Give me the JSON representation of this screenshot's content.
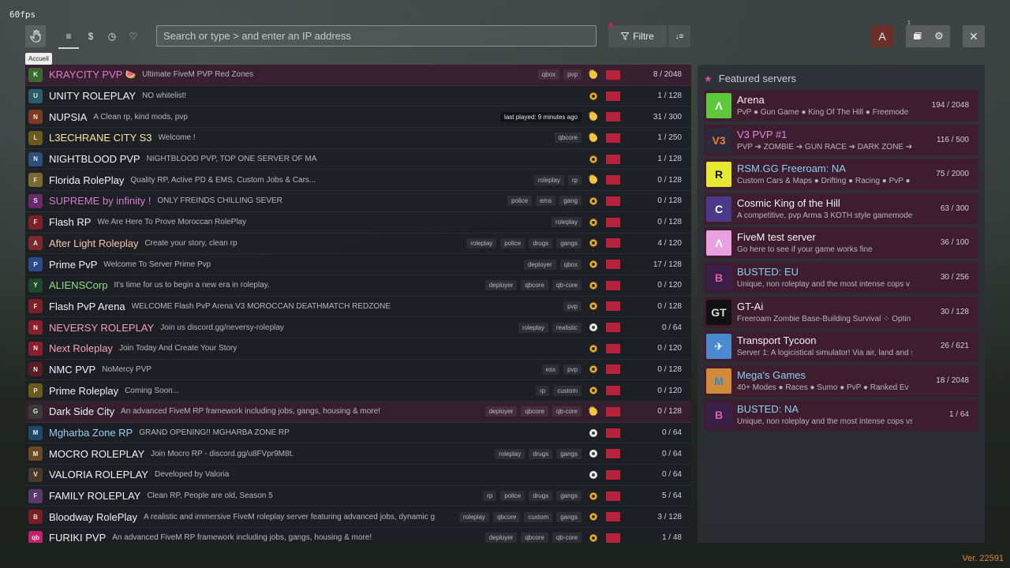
{
  "fps": "60fps",
  "tooltip": "Accueil",
  "toolbar": {
    "home_icon": "hand-icon",
    "tabs": [
      {
        "icon": "list-icon",
        "glyph": "≡"
      },
      {
        "icon": "dollar-icon",
        "glyph": "$"
      },
      {
        "icon": "clock-icon",
        "glyph": "◷"
      },
      {
        "icon": "heart-icon",
        "glyph": "♡"
      }
    ],
    "search_placeholder": "Search or type > and enter an IP address",
    "filter_label": "Filtre",
    "avatar_letter": "A",
    "notification_count": "1"
  },
  "servers": [
    {
      "name": "KRAYCITY PVP",
      "emoji": "🍉",
      "name_color": "#e07ad0",
      "desc": "Ultimate FiveM PVP Red Zones",
      "tags": [
        "qbox",
        "pvp"
      ],
      "status": "sunny",
      "players": "8 / 2048",
      "featured": true,
      "icon_bg": "#3a6b2e",
      "icon_txt": "K"
    },
    {
      "name": "UNITY ROLEPLAY",
      "emoji": "",
      "name_color": "#f2f2f4",
      "desc": "NO whitelist!",
      "tags": [],
      "status": "online",
      "players": "1 / 128",
      "featured": false,
      "icon_bg": "#2a5d68",
      "icon_txt": "U"
    },
    {
      "name": "NUPSIA",
      "emoji": "",
      "name_color": "#f2f2f4",
      "desc": "A Clean rp, kind mods, pvp",
      "tags": [
        "last played: 9 minutes ago"
      ],
      "status": "sunny",
      "players": "31 / 300",
      "featured": false,
      "icon_bg": "#7a3b22",
      "icon_txt": "N"
    },
    {
      "name": "L3ECHRANE CITY S3",
      "emoji": "",
      "name_color": "#f4e6a6",
      "desc": "Welcome !",
      "tags": [
        "qbcore"
      ],
      "status": "sunny",
      "players": "1 / 250",
      "featured": false,
      "icon_bg": "#6b5a1e",
      "icon_txt": "L"
    },
    {
      "name": "NIGHTBLOOD PVP",
      "emoji": "",
      "name_color": "#f2f2f4",
      "desc": "NIGHTBLOOD PVP, TOP ONE SERVER OF MA",
      "tags": [],
      "status": "online",
      "players": "1 / 128",
      "featured": false,
      "icon_bg": "#2a4f7a",
      "icon_txt": "N"
    },
    {
      "name": "Florida RolePlay",
      "emoji": "",
      "name_color": "#f2f2f4",
      "desc": "Quality RP, Active PD & EMS, Custom Jobs & Cars...",
      "tags": [
        "roleplay",
        "rp"
      ],
      "status": "sunny",
      "players": "0 / 128",
      "featured": false,
      "icon_bg": "#7a6a30",
      "icon_txt": "F"
    },
    {
      "name": "SUPREME by infinity !",
      "emoji": "",
      "name_color": "#d87ad4",
      "desc": "ONLY FREINDS CHILLING SEVER",
      "tags": [
        "police",
        "ems",
        "gang"
      ],
      "status": "online",
      "players": "0 / 128",
      "featured": false,
      "icon_bg": "#6a2a6a",
      "icon_txt": "S"
    },
    {
      "name": "Flash RP",
      "emoji": "",
      "name_color": "#f2f2f4",
      "desc": "We Are Here To Prove Moroccan RolePlay",
      "tags": [
        "roleplay"
      ],
      "status": "online",
      "players": "0 / 128",
      "featured": false,
      "icon_bg": "#7a2228",
      "icon_txt": "F"
    },
    {
      "name": "After Light Roleplay",
      "emoji": "",
      "name_color": "#f6c6b0",
      "desc": "Create your story, clean rp",
      "tags": [
        "roleplay",
        "police",
        "drugs",
        "gangs"
      ],
      "status": "online",
      "players": "4 / 120",
      "featured": false,
      "icon_bg": "#7a2a2a",
      "icon_txt": "A"
    },
    {
      "name": "Prime PvP",
      "emoji": "",
      "name_color": "#f2f2f4",
      "desc": "Welcome To Server Prime Pvp",
      "tags": [
        "deployer",
        "qbox"
      ],
      "status": "online",
      "players": "17 / 128",
      "featured": false,
      "icon_bg": "#2a4a8a",
      "icon_txt": "P"
    },
    {
      "name": "ALIENSCorp",
      "emoji": "",
      "name_color": "#8ee08a",
      "desc": "It's time for us to begin a new era in roleplay.",
      "tags": [
        "deployer",
        "qbcore",
        "qb-core"
      ],
      "status": "online",
      "players": "0 / 120",
      "featured": false,
      "icon_bg": "#1e4a2a",
      "icon_txt": "Y"
    },
    {
      "name": "Flash PvP Arena",
      "emoji": "",
      "name_color": "#f2f2f4",
      "desc": "WELCOME Flash PvP Arena V3 MOROCCAN DEATHMATCH REDZONE",
      "tags": [
        "pvp"
      ],
      "status": "online",
      "players": "0 / 128",
      "featured": false,
      "icon_bg": "#7a2228",
      "icon_txt": "F"
    },
    {
      "name": "NEVERSY ROLEPLAY",
      "emoji": "",
      "name_color": "#f0a0b0",
      "desc": "Join us discord.gg/neversy-roleplay",
      "tags": [
        "roleplay",
        "realistic"
      ],
      "status": "grey",
      "players": "0 / 64",
      "featured": false,
      "icon_bg": "#8a1e2a",
      "icon_txt": "N"
    },
    {
      "name": "Next Roleplay",
      "emoji": "",
      "name_color": "#f4a6b4",
      "desc": "Join Today And Create Your Story",
      "tags": [],
      "status": "online",
      "players": "0 / 120",
      "featured": false,
      "icon_bg": "#8a1e2a",
      "icon_txt": "N"
    },
    {
      "name": "NMC PVP",
      "emoji": "",
      "name_color": "#f2f2f4",
      "desc": "NoMercy PVP",
      "tags": [
        "esx",
        "pvp"
      ],
      "status": "online",
      "players": "0 / 128",
      "featured": false,
      "icon_bg": "#5a1e22",
      "icon_txt": "N"
    },
    {
      "name": "Prime Roleplay",
      "emoji": "",
      "name_color": "#f2f2f4",
      "desc": "Coming Soon...",
      "tags": [
        "rp",
        "custom"
      ],
      "status": "online",
      "players": "0 / 120",
      "featured": false,
      "icon_bg": "#6a5a1e",
      "icon_txt": "P"
    },
    {
      "name": "Dark Side City",
      "emoji": "",
      "name_color": "#f2f2f4",
      "desc": "An advanced FiveM RP framework including jobs, gangs, housing & more!",
      "tags": [
        "deployer",
        "qbcore",
        "qb-core"
      ],
      "status": "sunny",
      "players": "0 / 128",
      "featured": true,
      "icon_bg": "#3a3a3a",
      "icon_txt": "G"
    },
    {
      "name": "Mgharba Zone RP",
      "emoji": "",
      "name_color": "#9ad0f4",
      "desc": "GRAND OPENING!! MGHARBA ZONE RP",
      "tags": [],
      "status": "grey",
      "players": "0 / 64",
      "featured": false,
      "icon_bg": "#1e4a6a",
      "icon_txt": "M"
    },
    {
      "name": "MOCRO ROLEPLAY",
      "emoji": "",
      "name_color": "#f2f2f4",
      "desc": "Join Mocro RP - discord.gg/u8FVpr9M8t.",
      "tags": [
        "roleplay",
        "drugs",
        "gangs"
      ],
      "status": "grey",
      "players": "0 / 64",
      "featured": false,
      "icon_bg": "#6a4a1e",
      "icon_txt": "M"
    },
    {
      "name": "VALORIA ROLEPLAY",
      "emoji": "",
      "name_color": "#f2f2f4",
      "desc": "Developed by Valoria",
      "tags": [],
      "status": "grey",
      "players": "0 / 64",
      "featured": false,
      "icon_bg": "#4a3a2a",
      "icon_txt": "V"
    },
    {
      "name": "FAMILY ROLEPLAY",
      "emoji": "",
      "name_color": "#f2f2f4",
      "desc": "Clean RP, People are old, Season 5",
      "tags": [
        "rp",
        "police",
        "drugs",
        "gangs"
      ],
      "status": "online",
      "players": "5 / 64",
      "featured": false,
      "icon_bg": "#5a3a6a",
      "icon_txt": "F"
    },
    {
      "name": "Bloodway RolePlay",
      "emoji": "",
      "name_color": "#f2f2f4",
      "desc": "A realistic and immersive FiveM roleplay server featuring advanced jobs, dynamic g",
      "tags": [
        "roleplay",
        "qbcore",
        "custom",
        "gangs"
      ],
      "status": "online",
      "players": "3 / 128",
      "featured": false,
      "icon_bg": "#7a1e22",
      "icon_txt": "B"
    },
    {
      "name": "FURIKI PVP",
      "emoji": "",
      "name_color": "#f2f2f4",
      "desc": "An advanced FiveM RP framework including jobs, gangs, housing & more!",
      "tags": [
        "deployer",
        "qbcore",
        "qb-core"
      ],
      "status": "online",
      "players": "1 / 48",
      "featured": false,
      "icon_bg": "#c0236a",
      "icon_txt": "qb"
    }
  ],
  "featured": {
    "title": "Featured servers",
    "items": [
      {
        "name": "Arena",
        "name_color": "#f2f2f4",
        "desc": "PvP ● Gun Game ● King Of The Hill ● Freemode",
        "players": "194 / 2048",
        "icon_bg": "#5cc83a",
        "icon_txt": "Λ",
        "icon_color": "#ffffff"
      },
      {
        "name": "V3 PVP #1",
        "name_color": "#e08ae0",
        "desc": "PVP ➔ ZOMBIE ➔ GUN RACE ➔ DARK ZONE ➔ F",
        "players": "116 / 500",
        "icon_bg": "#2a2a3a",
        "icon_txt": "V3",
        "icon_color": "#f07a3a"
      },
      {
        "name": "RSM.GG Freeroam: NA",
        "name_color": "#8ad0f4",
        "desc": "Custom Cars & Maps ● Drifting ● Racing ● PvP ●",
        "players": "75 / 2000",
        "icon_bg": "#e4e830",
        "icon_txt": "R",
        "icon_color": "#111111"
      },
      {
        "name": "Cosmic King of the Hill",
        "name_color": "#f2f2f4",
        "desc": "A competitive, pvp Arma 3 KOTH style gamemode",
        "players": "63 / 300",
        "icon_bg": "#4a3a8a",
        "icon_txt": "C",
        "icon_color": "#ffffff"
      },
      {
        "name": "FiveM test server",
        "name_color": "#f2f2f4",
        "desc": "Go here to see if your game works fine",
        "players": "36 / 100",
        "icon_bg": "#e8a0e0",
        "icon_txt": "Λ",
        "icon_color": "#ffffff"
      },
      {
        "name": "BUSTED: EU",
        "name_color": "#8ad0f4",
        "desc": "Unique, non roleplay and the most intense cops v",
        "players": "30 / 256",
        "icon_bg": "#3a1e4a",
        "icon_txt": "B",
        "icon_color": "#e060a0"
      },
      {
        "name": "GT-Ai",
        "name_color": "#f2f2f4",
        "desc": "Freeroam Zombie Base-Building Survival ⁘ Optin",
        "players": "30 / 128",
        "icon_bg": "#111111",
        "icon_txt": "GT",
        "icon_color": "#dddddd"
      },
      {
        "name": "Transport Tycoon",
        "name_color": "#f2f2f4",
        "desc": "Server 1: A logicistical simulator! Via air, land and s",
        "players": "26 / 621",
        "icon_bg": "#4a8ad0",
        "icon_txt": "✈",
        "icon_color": "#ffffff"
      },
      {
        "name": "Mega's Games",
        "name_color": "#8ad0f4",
        "desc": "40+ Modes ● Races ● Sumo ● PvP ● Ranked Ev",
        "players": "18 / 2048",
        "icon_bg": "#d08a3a",
        "icon_txt": "M",
        "icon_color": "#2a8ad0"
      },
      {
        "name": "BUSTED: NA",
        "name_color": "#8ad0f4",
        "desc": "Unique, non roleplay and the most intense cops vs r",
        "players": "1 / 64",
        "icon_bg": "#3a1e4a",
        "icon_txt": "B",
        "icon_color": "#e060a0"
      }
    ]
  },
  "version": "Ver. 22591"
}
